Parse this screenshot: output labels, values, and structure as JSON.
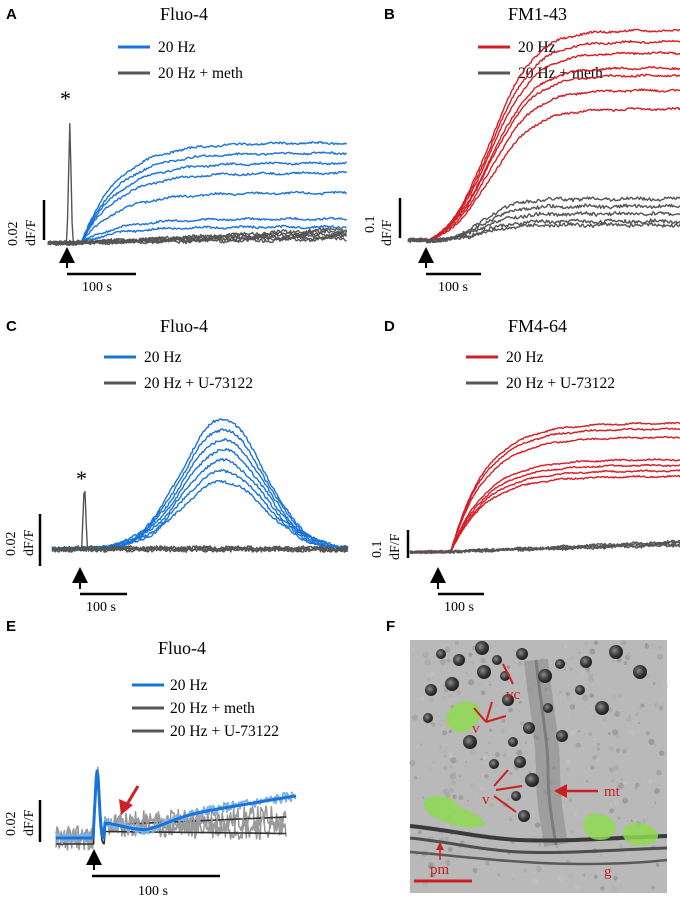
{
  "colors": {
    "blue": "#1a73d9",
    "blue_light": "#7fb3e6",
    "red": "#d21f26",
    "gray": "#555555",
    "gray_light": "#9a9a9a",
    "micro_bg": "#b9b9b9",
    "vesicle_green": "#8fd94f",
    "annotation_red": "#cc1f1f"
  },
  "panels": {
    "A": {
      "letter": "A",
      "title": "Fluo-4",
      "legend": [
        "20 Hz",
        "20 Hz + meth"
      ],
      "ybar_label": "dF/F",
      "ybar_value": "0.02",
      "xbar_label": "100 s",
      "marker": "*"
    },
    "B": {
      "letter": "B",
      "title": "FM1-43",
      "legend": [
        "20 Hz",
        "20 Hz + meth"
      ],
      "ybar_label": "dF/F",
      "ybar_value": "0.1",
      "xbar_label": "100 s"
    },
    "C": {
      "letter": "C",
      "title": "Fluo-4",
      "legend": [
        "20 Hz",
        "20 Hz + U-73122"
      ],
      "ybar_label": "dF/F",
      "ybar_value": "0.02",
      "xbar_label": "100 s",
      "marker": "*"
    },
    "D": {
      "letter": "D",
      "title": "FM4-64",
      "legend": [
        "20 Hz",
        "20 Hz + U-73122"
      ],
      "ybar_label": "dF/F",
      "ybar_value": "0.1",
      "xbar_label": "100 s"
    },
    "E": {
      "letter": "E",
      "title": "Fluo-4",
      "legend": [
        "20 Hz",
        "20 Hz + meth",
        "20 Hz + U-73122"
      ],
      "ybar_label": "dF/F",
      "ybar_value": "0.02",
      "xbar_label": "100 s"
    },
    "F": {
      "letter": "F",
      "labels": {
        "vc": "vc",
        "v1": "v",
        "v2": "v",
        "mt": "mt",
        "pm": "pm",
        "g": "g"
      }
    }
  },
  "chart_data": [
    {
      "panel": "A",
      "type": "line",
      "title": "Fluo-4",
      "ylabel": "dF/F",
      "y_scale_bar": 0.02,
      "x_scale_bar_s": 100,
      "stimulus_onset_s": 0,
      "series": [
        {
          "name": "20 Hz",
          "color": "blue",
          "n_traces": 7,
          "template": {
            "type": "rise",
            "rise_start_s": 15,
            "tau_s": 40
          },
          "plateaus": [
            0.045,
            0.05,
            0.04,
            0.035,
            0.025,
            0.012,
            0.008
          ]
        },
        {
          "name": "20 Hz + meth",
          "color": "gray",
          "n_traces": 6,
          "template": {
            "type": "spike_drift",
            "spike_s": 3,
            "spike_height": 0.06,
            "drift": 0.008
          },
          "plateaus": [
            0.007,
            0.006,
            0.005,
            0.004,
            0.003,
            0.002
          ]
        }
      ]
    },
    {
      "panel": "B",
      "type": "line",
      "title": "FM1-43",
      "ylabel": "dF/F",
      "y_scale_bar": 0.1,
      "x_scale_bar_s": 100,
      "series": [
        {
          "name": "20 Hz",
          "color": "red",
          "n_traces": 7,
          "template": {
            "type": "sigmoid",
            "rise_start_s": 5,
            "tau_s": 55
          },
          "plateaus": [
            0.56,
            0.53,
            0.5,
            0.46,
            0.44,
            0.4,
            0.35
          ]
        },
        {
          "name": "20 Hz + meth",
          "color": "gray",
          "n_traces": 5,
          "template": {
            "type": "sigmoid",
            "rise_start_s": 15,
            "tau_s": 40
          },
          "plateaus": [
            0.11,
            0.09,
            0.07,
            0.05,
            0.04
          ]
        }
      ]
    },
    {
      "panel": "C",
      "type": "line",
      "title": "Fluo-4",
      "ylabel": "dF/F",
      "y_scale_bar": 0.02,
      "x_scale_bar_s": 100,
      "series": [
        {
          "name": "20 Hz",
          "color": "blue",
          "n_traces": 7,
          "template": {
            "type": "hump",
            "peak_s": 160,
            "width_s": 65
          },
          "peaks": [
            0.05,
            0.046,
            0.042,
            0.038,
            0.034,
            0.03,
            0.026
          ]
        },
        {
          "name": "20 Hz + U-73122",
          "color": "gray",
          "n_traces": 4,
          "template": {
            "type": "spike_flat",
            "spike_s": 5,
            "spike_height": 0.028
          },
          "plateaus": [
            0.002,
            0.002,
            0.002,
            0.002
          ]
        }
      ]
    },
    {
      "panel": "D",
      "type": "line",
      "title": "FM4-64",
      "ylabel": "dF/F",
      "y_scale_bar": 0.1,
      "x_scale_bar_s": 100,
      "series": [
        {
          "name": "20 Hz",
          "color": "red",
          "n_traces": 7,
          "template": {
            "type": "rise",
            "rise_start_s": 15,
            "tau_s": 40
          },
          "plateaus": [
            0.46,
            0.44,
            0.41,
            0.33,
            0.31,
            0.29,
            0.27
          ]
        },
        {
          "name": "20 Hz + U-73122",
          "color": "gray",
          "n_traces": 4,
          "template": {
            "type": "drift",
            "drift": 0.04
          },
          "plateaus": [
            0.04,
            0.035,
            0.03,
            0.025
          ]
        }
      ]
    },
    {
      "panel": "E",
      "type": "line",
      "title": "Fluo-4",
      "ylabel": "dF/F",
      "y_scale_bar": 0.02,
      "x_scale_bar_s": 100,
      "series": [
        {
          "name": "20 Hz",
          "color": "blue",
          "role": "fit",
          "spike_height": 0.032,
          "dip_at_s": 40,
          "end_value": 0.018
        },
        {
          "name": "20 Hz + meth",
          "color": "gray",
          "role": "average",
          "end_value": 0.004
        },
        {
          "name": "20 Hz + U-73122",
          "color": "gray",
          "role": "average",
          "end_value": -0.001
        }
      ],
      "annotation": "red arrow marking delayed rise"
    }
  ]
}
